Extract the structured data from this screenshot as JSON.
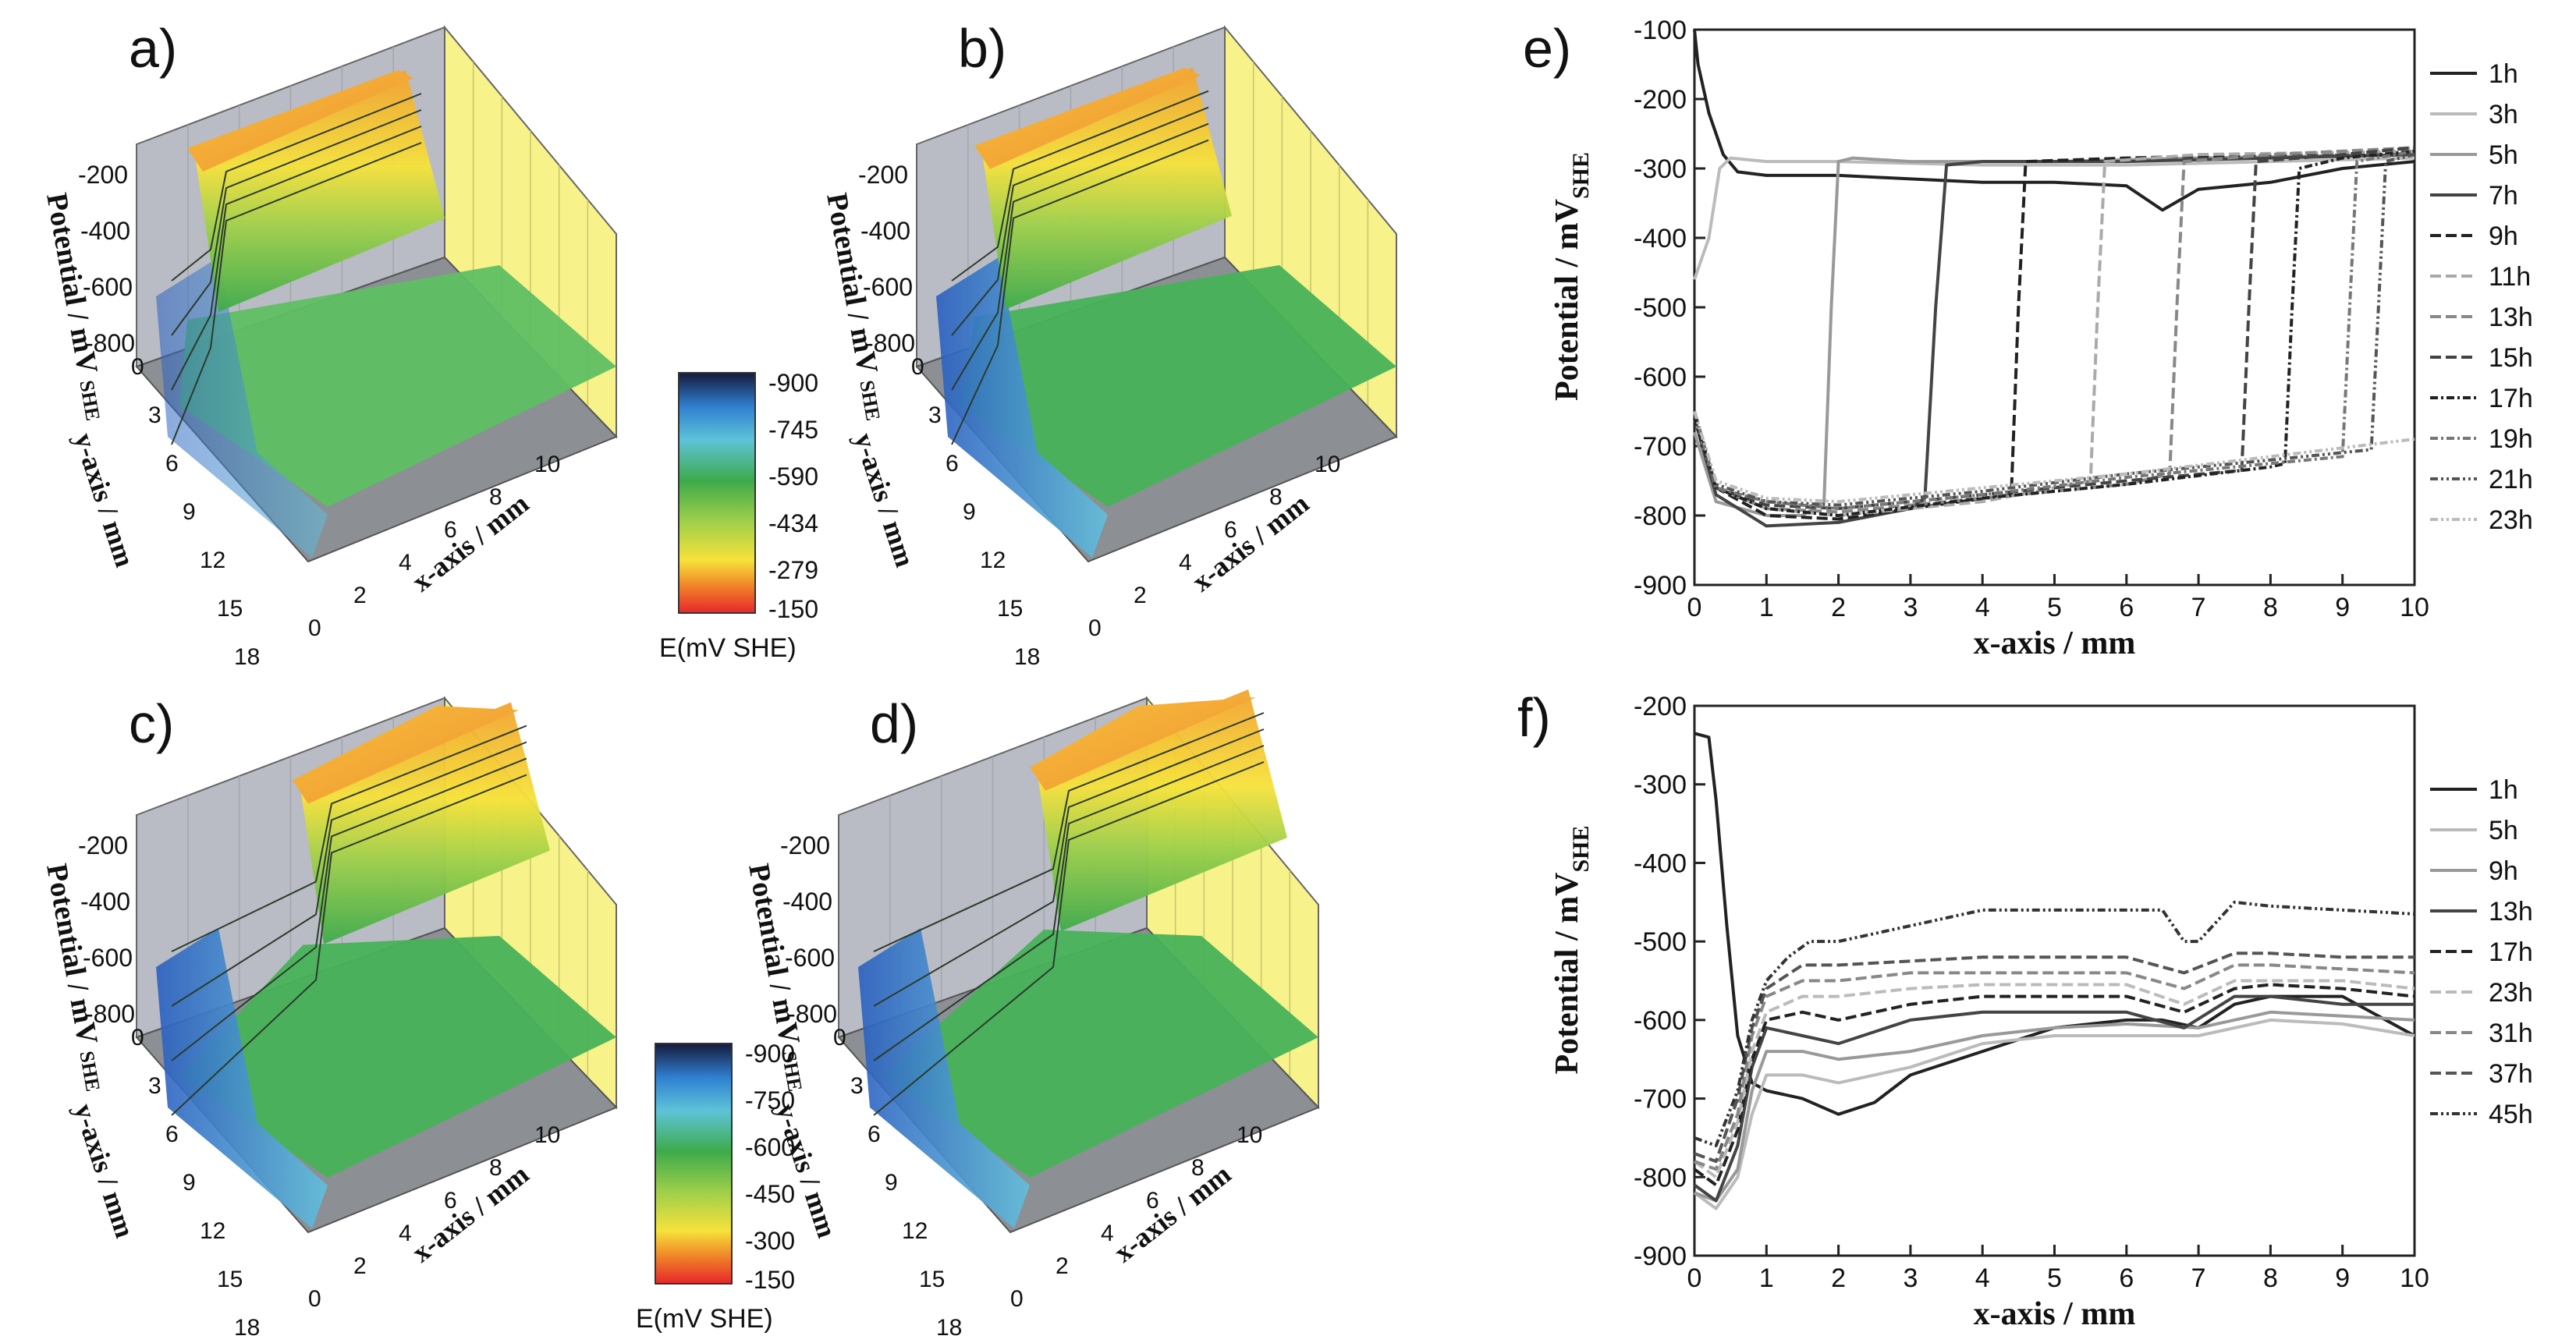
{
  "figure": {
    "panel_labels": [
      "a)",
      "b)",
      "c)",
      "d)",
      "e)",
      "f)"
    ]
  },
  "colorbars": [
    {
      "title": "E(mV SHE)",
      "ticks": [
        "-900",
        "-745",
        "-590",
        "-434",
        "-279",
        "-150"
      ]
    },
    {
      "title": "E(mV SHE)",
      "ticks": [
        "-900",
        "-750",
        "-600",
        "-450",
        "-300",
        "-150"
      ]
    }
  ],
  "surface_axes": {
    "z_label": "Potential / mV",
    "z_sub": "SHE",
    "z_ticks": [
      "-200",
      "-400",
      "-600",
      "-800"
    ],
    "y_label": "y-axis / mm",
    "y_ticks_a": [
      "0",
      "3",
      "6",
      "9",
      "12",
      "15",
      "18"
    ],
    "y_ticks_b": [
      "3",
      "6",
      "9",
      "12",
      "15",
      "18"
    ],
    "x_label": "x-axis / mm",
    "x_ticks": [
      "0",
      "2",
      "4",
      "6",
      "8",
      "10"
    ]
  },
  "surfaces": [
    {
      "id": "a",
      "front_potential": -800,
      "step_x": 0.0,
      "back_potential": -300
    },
    {
      "id": "b",
      "front_potential": -650,
      "step_x": 0.3,
      "back_potential": -250
    },
    {
      "id": "c",
      "front_potential": -680,
      "step_x": 4.5,
      "back_potential": -250
    },
    {
      "id": "d",
      "front_potential": -680,
      "step_x": 6.0,
      "back_potential": -250
    }
  ],
  "chart_data": [
    {
      "id": "e",
      "type": "line",
      "title": "",
      "xlabel": "x-axis / mm",
      "ylabel": "Potential / mV",
      "ylabel_sub": "SHE",
      "xlim": [
        0,
        10
      ],
      "ylim": [
        -900,
        -100
      ],
      "xticks": [
        0,
        1,
        2,
        3,
        4,
        5,
        6,
        7,
        8,
        9,
        10
      ],
      "yticks": [
        -900,
        -800,
        -700,
        -600,
        -500,
        -400,
        -300,
        -200,
        -100
      ],
      "legend_position": "right",
      "series": [
        {
          "name": "1h",
          "x": [
            0,
            0.05,
            0.2,
            0.4,
            0.6,
            1,
            2,
            3,
            4,
            5,
            6,
            6.5,
            7,
            8,
            9,
            10
          ],
          "values": [
            -100,
            -150,
            -220,
            -280,
            -305,
            -310,
            -310,
            -315,
            -320,
            -320,
            -325,
            -360,
            -330,
            -320,
            -300,
            -290
          ]
        },
        {
          "name": "3h",
          "x": [
            0,
            0.2,
            0.35,
            0.5,
            1,
            2,
            4,
            6,
            8,
            10
          ],
          "values": [
            -460,
            -400,
            -300,
            -285,
            -290,
            -290,
            -295,
            -295,
            -290,
            -285
          ]
        },
        {
          "name": "5h",
          "x": [
            0,
            0.3,
            1,
            1.5,
            1.8,
            1.9,
            2,
            2.2,
            3,
            5,
            7,
            10
          ],
          "values": [
            -680,
            -780,
            -800,
            -800,
            -780,
            -500,
            -290,
            -285,
            -290,
            -290,
            -285,
            -280
          ]
        },
        {
          "name": "7h",
          "x": [
            0,
            0.3,
            1,
            2,
            3,
            3.2,
            3.35,
            3.5,
            4,
            6,
            8,
            10
          ],
          "values": [
            -660,
            -770,
            -815,
            -810,
            -790,
            -775,
            -500,
            -295,
            -290,
            -290,
            -285,
            -280
          ]
        },
        {
          "name": "9h",
          "x": [
            0,
            0.3,
            1,
            2,
            3,
            4.4,
            4.5,
            4.6,
            6,
            8,
            10
          ],
          "values": [
            -650,
            -760,
            -800,
            -805,
            -790,
            -770,
            -500,
            -290,
            -285,
            -280,
            -275
          ]
        },
        {
          "name": "11h",
          "x": [
            0,
            0.3,
            1,
            2,
            4,
            5.5,
            5.6,
            5.7,
            7,
            10
          ],
          "values": [
            -650,
            -760,
            -790,
            -800,
            -780,
            -750,
            -500,
            -290,
            -280,
            -275
          ]
        },
        {
          "name": "13h",
          "x": [
            0,
            0.3,
            1,
            2,
            4,
            6,
            6.6,
            6.7,
            6.8,
            8,
            10
          ],
          "values": [
            -660,
            -760,
            -790,
            -795,
            -775,
            -755,
            -740,
            -500,
            -290,
            -280,
            -270
          ]
        },
        {
          "name": "15h",
          "x": [
            0,
            0.3,
            1,
            2,
            4,
            6,
            7.6,
            7.7,
            7.8,
            9,
            10
          ],
          "values": [
            -650,
            -760,
            -785,
            -790,
            -770,
            -750,
            -735,
            -500,
            -290,
            -280,
            -270
          ]
        },
        {
          "name": "17h",
          "x": [
            0,
            0.3,
            1,
            2,
            4,
            6,
            8,
            8.2,
            8.3,
            8.4,
            9,
            10
          ],
          "values": [
            -660,
            -760,
            -790,
            -800,
            -775,
            -755,
            -730,
            -725,
            -500,
            -300,
            -285,
            -275
          ]
        },
        {
          "name": "19h",
          "x": [
            0,
            0.3,
            1,
            2,
            4,
            6,
            8,
            9,
            9.1,
            9.2,
            10
          ],
          "values": [
            -650,
            -760,
            -780,
            -790,
            -770,
            -745,
            -725,
            -715,
            -500,
            -290,
            -275
          ]
        },
        {
          "name": "21h",
          "x": [
            0,
            0.3,
            1,
            2,
            4,
            6,
            8,
            9.4,
            9.5,
            9.6,
            10
          ],
          "values": [
            -650,
            -755,
            -780,
            -785,
            -765,
            -740,
            -720,
            -705,
            -500,
            -290,
            -280
          ]
        },
        {
          "name": "23h",
          "x": [
            0,
            0.3,
            1,
            2,
            4,
            6,
            8,
            10
          ],
          "values": [
            -650,
            -750,
            -775,
            -780,
            -760,
            -740,
            -715,
            -690
          ]
        }
      ]
    },
    {
      "id": "f",
      "type": "line",
      "title": "",
      "xlabel": "x-axis / mm",
      "ylabel": "Potential / mV",
      "ylabel_sub": "SHE",
      "xlim": [
        0,
        10
      ],
      "ylim": [
        -900,
        -200
      ],
      "xticks": [
        0,
        1,
        2,
        3,
        4,
        5,
        6,
        7,
        8,
        9,
        10
      ],
      "yticks": [
        -900,
        -800,
        -700,
        -600,
        -500,
        -400,
        -300,
        -200
      ],
      "legend_position": "right",
      "series": [
        {
          "name": "1h",
          "x": [
            0,
            0.2,
            0.3,
            0.45,
            0.6,
            0.8,
            1,
            1.5,
            2,
            2.5,
            3,
            4,
            5,
            6,
            6.5,
            7,
            7.5,
            8,
            9,
            10
          ],
          "values": [
            -235,
            -240,
            -320,
            -480,
            -620,
            -680,
            -690,
            -700,
            -720,
            -705,
            -670,
            -640,
            -610,
            -600,
            -600,
            -610,
            -580,
            -570,
            -570,
            -620
          ]
        },
        {
          "name": "5h",
          "x": [
            0,
            0.3,
            0.6,
            0.8,
            1,
            1.5,
            2,
            3,
            4,
            5,
            6,
            7,
            8,
            9,
            10
          ],
          "values": [
            -820,
            -840,
            -800,
            -720,
            -670,
            -670,
            -680,
            -660,
            -630,
            -620,
            -620,
            -620,
            -600,
            -605,
            -620
          ]
        },
        {
          "name": "9h",
          "x": [
            0,
            0.3,
            0.6,
            0.8,
            1,
            1.5,
            2,
            3,
            4,
            5,
            6,
            7,
            8,
            9,
            10
          ],
          "values": [
            -820,
            -830,
            -790,
            -690,
            -640,
            -640,
            -650,
            -640,
            -620,
            -610,
            -605,
            -610,
            -590,
            -595,
            -600
          ]
        },
        {
          "name": "13h",
          "x": [
            0,
            0.3,
            0.6,
            0.8,
            1,
            1.5,
            2,
            3,
            4,
            5,
            6,
            6.8,
            7.5,
            8,
            9,
            10
          ],
          "values": [
            -810,
            -830,
            -760,
            -660,
            -610,
            -620,
            -630,
            -600,
            -590,
            -590,
            -590,
            -610,
            -570,
            -570,
            -580,
            -580
          ]
        },
        {
          "name": "17h",
          "x": [
            0,
            0.3,
            0.6,
            0.8,
            1,
            1.5,
            2,
            3,
            4,
            5,
            6,
            6.8,
            7.5,
            8,
            9,
            10
          ],
          "values": [
            -790,
            -810,
            -740,
            -650,
            -600,
            -590,
            -600,
            -580,
            -570,
            -570,
            -570,
            -590,
            -560,
            -555,
            -560,
            -570
          ]
        },
        {
          "name": "23h",
          "x": [
            0,
            0.3,
            0.6,
            0.8,
            1,
            1.5,
            2,
            3,
            4,
            5,
            6,
            6.8,
            7.5,
            8,
            9,
            10
          ],
          "values": [
            -780,
            -800,
            -730,
            -640,
            -590,
            -570,
            -570,
            -560,
            -555,
            -555,
            -555,
            -580,
            -550,
            -550,
            -550,
            -560
          ]
        },
        {
          "name": "31h",
          "x": [
            0,
            0.3,
            0.6,
            0.8,
            1,
            1.5,
            2,
            3,
            4,
            5,
            6,
            6.8,
            7.5,
            8,
            9,
            10
          ],
          "values": [
            -780,
            -790,
            -720,
            -620,
            -570,
            -550,
            -550,
            -540,
            -540,
            -540,
            -540,
            -560,
            -530,
            -530,
            -535,
            -540
          ]
        },
        {
          "name": "37h",
          "x": [
            0,
            0.3,
            0.6,
            0.8,
            1,
            1.5,
            2,
            3,
            4,
            5,
            6,
            6.8,
            7.5,
            8,
            9,
            10
          ],
          "values": [
            -770,
            -780,
            -700,
            -610,
            -560,
            -530,
            -530,
            -525,
            -520,
            -520,
            -520,
            -540,
            -515,
            -515,
            -520,
            -520
          ]
        },
        {
          "name": "45h",
          "x": [
            0,
            0.3,
            0.6,
            0.8,
            1,
            1.3,
            1.6,
            2,
            3,
            4,
            5,
            6,
            6.5,
            6.8,
            7,
            7.5,
            8,
            9,
            10
          ],
          "values": [
            -750,
            -760,
            -690,
            -600,
            -550,
            -520,
            -500,
            -500,
            -480,
            -460,
            -460,
            -460,
            -460,
            -500,
            -500,
            -450,
            -455,
            -460,
            -465
          ]
        }
      ]
    }
  ]
}
